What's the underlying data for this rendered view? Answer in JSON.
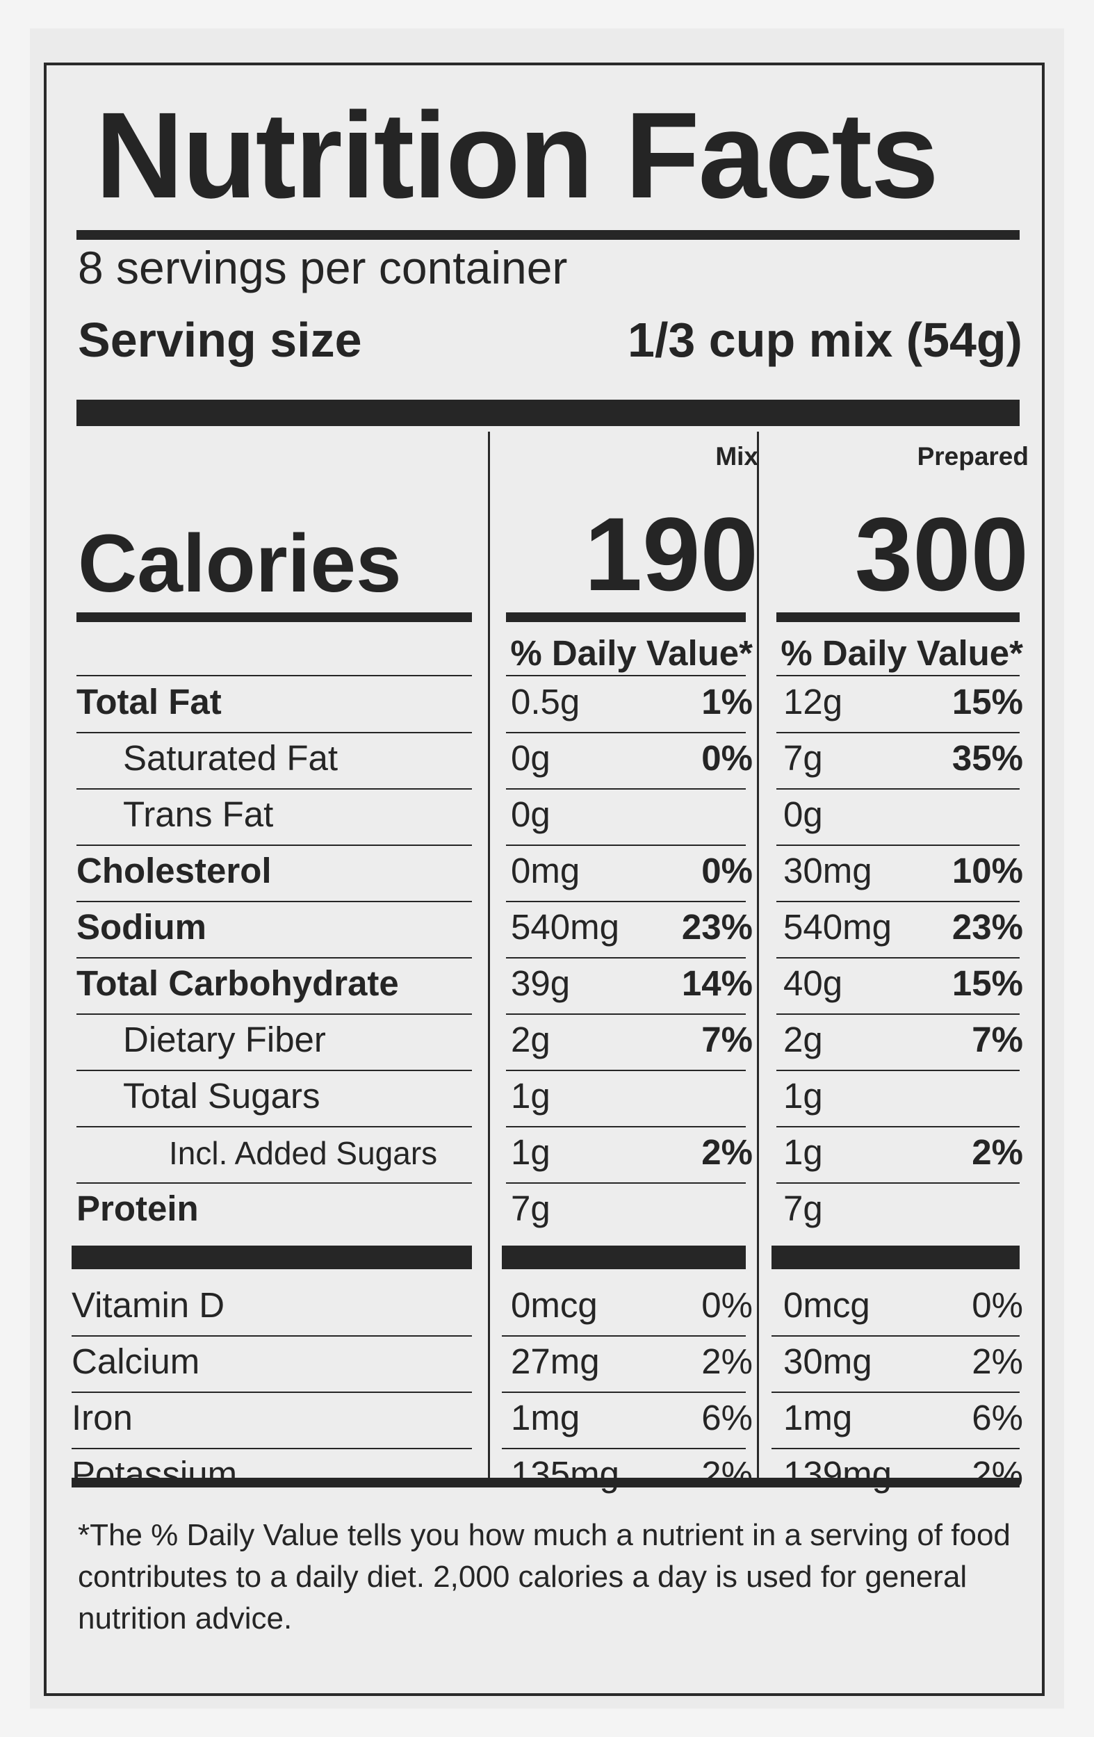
{
  "title": "Nutrition Facts",
  "servings_per_container": "8 servings per container",
  "serving_size": {
    "label": "Serving size",
    "value": "1/3 cup mix (54g)"
  },
  "columns": [
    {
      "heading": "Mix",
      "calories": "190",
      "dv_header": "% Daily Value*"
    },
    {
      "heading": "Prepared",
      "calories": "300",
      "dv_header": "% Daily Value*"
    }
  ],
  "calories_label": "Calories",
  "nutrients": [
    {
      "name": "Total Fat",
      "bold": true,
      "indent": 0,
      "mix_amount": "0.5g",
      "mix_dv": "1%",
      "prep_amount": "12g",
      "prep_dv": "15%"
    },
    {
      "name": "Saturated Fat",
      "bold": false,
      "indent": 1,
      "mix_amount": "0g",
      "mix_dv": "0%",
      "prep_amount": "7g",
      "prep_dv": "35%"
    },
    {
      "name": "Trans Fat",
      "bold": false,
      "indent": 1,
      "mix_amount": "0g",
      "mix_dv": "",
      "prep_amount": "0g",
      "prep_dv": ""
    },
    {
      "name": "Cholesterol",
      "bold": true,
      "indent": 0,
      "mix_amount": "0mg",
      "mix_dv": "0%",
      "prep_amount": "30mg",
      "prep_dv": "10%"
    },
    {
      "name": "Sodium",
      "bold": true,
      "indent": 0,
      "mix_amount": "540mg",
      "mix_dv": "23%",
      "prep_amount": "540mg",
      "prep_dv": "23%"
    },
    {
      "name": "Total Carbohydrate",
      "bold": true,
      "indent": 0,
      "mix_amount": "39g",
      "mix_dv": "14%",
      "prep_amount": "40g",
      "prep_dv": "15%"
    },
    {
      "name": "Dietary Fiber",
      "bold": false,
      "indent": 1,
      "mix_amount": "2g",
      "mix_dv": "7%",
      "prep_amount": "2g",
      "prep_dv": "7%"
    },
    {
      "name": "Total Sugars",
      "bold": false,
      "indent": 1,
      "mix_amount": "1g",
      "mix_dv": "",
      "prep_amount": "1g",
      "prep_dv": ""
    },
    {
      "name": "Incl. Added Sugars",
      "bold": false,
      "indent": 2,
      "mix_amount": "1g",
      "mix_dv": "2%",
      "prep_amount": "1g",
      "prep_dv": "2%"
    },
    {
      "name": "Protein",
      "bold": true,
      "indent": 0,
      "mix_amount": "7g",
      "mix_dv": "",
      "prep_amount": "7g",
      "prep_dv": ""
    }
  ],
  "micronutrients": [
    {
      "name": "Vitamin D",
      "mix_amount": "0mcg",
      "mix_dv": "0%",
      "prep_amount": "0mcg",
      "prep_dv": "0%"
    },
    {
      "name": "Calcium",
      "mix_amount": "27mg",
      "mix_dv": "2%",
      "prep_amount": "30mg",
      "prep_dv": "2%"
    },
    {
      "name": "Iron",
      "mix_amount": "1mg",
      "mix_dv": "6%",
      "prep_amount": "1mg",
      "prep_dv": "6%"
    },
    {
      "name": "Potassium",
      "mix_amount": "135mg",
      "mix_dv": "2%",
      "prep_amount": "139mg",
      "prep_dv": "2%"
    }
  ],
  "footnote": "*The % Daily Value tells you how much a nutrient in a serving of food contributes to a daily diet. 2,000 calories a day is used for general nutrition advice."
}
